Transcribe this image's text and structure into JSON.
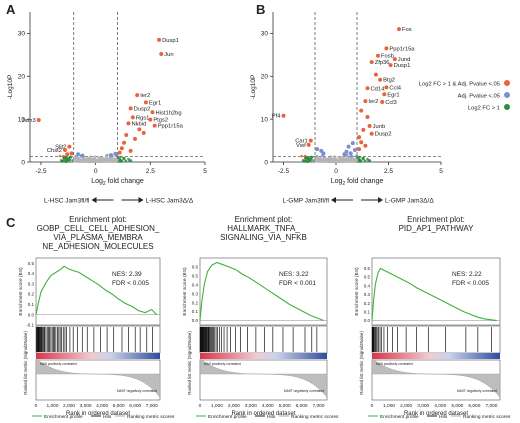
{
  "panels": {
    "a": "A",
    "b": "B",
    "c": "C"
  },
  "chart_data": [
    {
      "type": "scatter",
      "panel": "A",
      "xlabel_main": "Log",
      "xlabel_sub": "2",
      "xlabel_tail": " fold change",
      "ylabel": "-Log10P",
      "xlim": [
        -3,
        5
      ],
      "ylim": [
        0,
        35
      ],
      "xticks": [
        "-2.5",
        "0",
        "2.5",
        "5"
      ],
      "yticks": [
        "0",
        "10",
        "20",
        "30"
      ],
      "vlines": [
        -1,
        1
      ],
      "hline": 1.3,
      "direction_left": "L-HSC Jam3fl/fl",
      "direction_right": "L-HSC Jam3Δ/Δ",
      "points": [
        {
          "x": 2.9,
          "y": 28.5,
          "label": "Dusp1"
        },
        {
          "x": 3.0,
          "y": 25.2,
          "label": "Jun"
        },
        {
          "x": 1.9,
          "y": 15.6,
          "label": "Ier2"
        },
        {
          "x": 2.3,
          "y": 13.9,
          "label": "Egr1"
        },
        {
          "x": 1.6,
          "y": 12.5,
          "label": "Dusp2"
        },
        {
          "x": 2.6,
          "y": 11.6,
          "label": "Hist1h2bg"
        },
        {
          "x": 1.7,
          "y": 10.4,
          "label": "Rgs1"
        },
        {
          "x": 2.5,
          "y": 9.9,
          "label": "Ptgs2"
        },
        {
          "x": 1.5,
          "y": 9.0,
          "label": "Nkbid"
        },
        {
          "x": 2.7,
          "y": 8.5,
          "label": "Ppp1r15a"
        },
        {
          "x": -2.6,
          "y": 9.8,
          "label": "Jam3"
        },
        {
          "x": -1.2,
          "y": 3.6,
          "label": "Slit2"
        },
        {
          "x": -1.4,
          "y": 2.8,
          "label": "Chst2"
        },
        {
          "x": 2.0,
          "y": 7.6,
          "label": ""
        },
        {
          "x": 1.4,
          "y": 6.3,
          "label": ""
        },
        {
          "x": 1.8,
          "y": 5.4,
          "label": ""
        },
        {
          "x": 2.2,
          "y": 6.8,
          "label": ""
        },
        {
          "x": 1.3,
          "y": 4.5,
          "label": ""
        },
        {
          "x": 1.2,
          "y": 3.2,
          "label": ""
        },
        {
          "x": 1.6,
          "y": 2.6,
          "label": ""
        },
        {
          "x": 1.1,
          "y": 2.2,
          "label": ""
        },
        {
          "x": -1.1,
          "y": 2.0,
          "label": ""
        },
        {
          "x": -1.3,
          "y": 1.8,
          "label": ""
        },
        {
          "x": 0.9,
          "y": 1.9,
          "label": ""
        },
        {
          "x": 0.7,
          "y": 1.6,
          "label": ""
        },
        {
          "x": -0.6,
          "y": 1.5,
          "label": ""
        },
        {
          "x": -0.8,
          "y": 1.8,
          "label": ""
        }
      ]
    },
    {
      "type": "scatter",
      "panel": "B",
      "xlabel_main": "Log",
      "xlabel_sub": "2",
      "xlabel_tail": " fold change",
      "ylabel": "-Log10P",
      "xlim": [
        -3,
        5
      ],
      "ylim": [
        0,
        35
      ],
      "xticks": [
        "-2.5",
        "0",
        "2.5",
        "5"
      ],
      "yticks": [
        "0",
        "10",
        "20",
        "30"
      ],
      "vlines": [
        -1,
        1
      ],
      "hline": 1.3,
      "direction_left": "L-GMP Jam3fl/fl",
      "direction_right": "L-GMP Jam3Δ/Δ",
      "points": [
        {
          "x": 3.0,
          "y": 31.0,
          "label": "Fos"
        },
        {
          "x": 2.4,
          "y": 26.5,
          "label": "Ppp1r15a"
        },
        {
          "x": 2.0,
          "y": 24.8,
          "label": "Fosb"
        },
        {
          "x": 2.8,
          "y": 24.0,
          "label": "Jund"
        },
        {
          "x": 1.7,
          "y": 23.3,
          "label": "Zfp36"
        },
        {
          "x": 2.6,
          "y": 22.6,
          "label": "Dusp1"
        },
        {
          "x": 2.1,
          "y": 19.2,
          "label": "Btg2"
        },
        {
          "x": 1.5,
          "y": 17.2,
          "label": "Cd14"
        },
        {
          "x": 2.4,
          "y": 17.4,
          "label": "Ccl4"
        },
        {
          "x": 2.3,
          "y": 15.8,
          "label": "Egr1"
        },
        {
          "x": 1.4,
          "y": 14.2,
          "label": "Ier2"
        },
        {
          "x": 2.2,
          "y": 14.0,
          "label": "Ccl3"
        },
        {
          "x": 1.6,
          "y": 8.4,
          "label": "Junb"
        },
        {
          "x": 1.7,
          "y": 6.6,
          "label": "Dusp2"
        },
        {
          "x": -2.5,
          "y": 10.8,
          "label": "Pf4"
        },
        {
          "x": -1.2,
          "y": 5.0,
          "label": "Car1"
        },
        {
          "x": -1.3,
          "y": 4.0,
          "label": "Vwf"
        },
        {
          "x": 1.9,
          "y": 20.4,
          "label": ""
        },
        {
          "x": 1.2,
          "y": 12.0,
          "label": ""
        },
        {
          "x": 1.5,
          "y": 10.5,
          "label": ""
        },
        {
          "x": 1.3,
          "y": 7.5,
          "label": ""
        },
        {
          "x": 1.1,
          "y": 5.8,
          "label": ""
        },
        {
          "x": 1.2,
          "y": 4.6,
          "label": ""
        },
        {
          "x": 1.4,
          "y": 3.8,
          "label": ""
        },
        {
          "x": 1.1,
          "y": 3.0,
          "label": ""
        },
        {
          "x": 0.8,
          "y": 4.4,
          "label": ""
        },
        {
          "x": 0.6,
          "y": 3.6,
          "label": ""
        },
        {
          "x": 0.9,
          "y": 2.8,
          "label": ""
        },
        {
          "x": 0.5,
          "y": 2.4,
          "label": ""
        },
        {
          "x": -0.7,
          "y": 2.6,
          "label": ""
        },
        {
          "x": -0.9,
          "y": 3.0,
          "label": ""
        },
        {
          "x": -0.6,
          "y": 2.0,
          "label": ""
        },
        {
          "x": 0.4,
          "y": 1.8,
          "label": ""
        },
        {
          "x": 0.7,
          "y": 2.0,
          "label": ""
        }
      ]
    },
    {
      "type": "line",
      "panel": "C1",
      "title_lines": [
        "Enrichment plot:",
        "GOBP_CELL_CELL_ADHESION_",
        "VIA_PLASMA_MEMBRA",
        "NE_ADHESION_MOLECULES"
      ],
      "nes": "NES: 2.39",
      "fdr": "FDR < 0.005",
      "ylabel_top": "Enrichment score (ES)",
      "ylabel_bottom": "Ranked list metric (Signal2Noise)",
      "xlabel": "Rank in ordered dataset",
      "es_yticks": [
        "0.5",
        "0.4",
        "0.3",
        "0.2",
        "0.1",
        "0.0",
        "-0.1"
      ],
      "es_ylim": [
        -0.1,
        0.55
      ],
      "xticks": [
        "0",
        "1,000",
        "2,000",
        "3,000",
        "4,000",
        "5,000",
        "6,000",
        "7,000"
      ],
      "xlim": [
        0,
        7500
      ],
      "es_curve": [
        [
          0,
          0
        ],
        [
          150,
          0.12
        ],
        [
          300,
          0.22
        ],
        [
          600,
          0.31
        ],
        [
          900,
          0.38
        ],
        [
          1200,
          0.41
        ],
        [
          1500,
          0.44
        ],
        [
          1700,
          0.47
        ],
        [
          1900,
          0.45
        ],
        [
          2200,
          0.43
        ],
        [
          2600,
          0.41
        ],
        [
          3000,
          0.37
        ],
        [
          3400,
          0.33
        ],
        [
          3800,
          0.29
        ],
        [
          4200,
          0.24
        ],
        [
          4600,
          0.2
        ],
        [
          5000,
          0.15
        ],
        [
          5400,
          0.11
        ],
        [
          5800,
          0.08
        ],
        [
          6200,
          0.04
        ],
        [
          6600,
          0.02
        ],
        [
          7000,
          0.05
        ],
        [
          7300,
          0.0
        ]
      ],
      "hits": [
        30,
        60,
        90,
        110,
        140,
        170,
        200,
        240,
        280,
        320,
        360,
        420,
        480,
        520,
        600,
        680,
        760,
        820,
        900,
        980,
        1050,
        1120,
        1200,
        1300,
        1380,
        1460,
        1550,
        1650,
        1750,
        1850,
        2050,
        2250,
        2500,
        2800,
        3100,
        3500,
        3900,
        4300,
        4700,
        5200,
        5600,
        6000,
        6300,
        6700,
        7050
      ],
      "metric_label_pos": "MA9 positively correlated",
      "metric_label_neg": "MA9T negatively correlated"
    },
    {
      "type": "line",
      "panel": "C2",
      "title_lines": [
        "Enrichment plot:",
        "HALLMARK_TNFA_",
        "SIGNALING_VIA_NFKB"
      ],
      "nes": "NES: 3.22",
      "fdr": "FDR < 0.001",
      "ylabel_top": "Enrichment score (ES)",
      "ylabel_bottom": "Ranked list metric (Signal2Noise)",
      "xlabel": "Rank in ordered dataset",
      "es_yticks": [
        "0.6",
        "0.5",
        "0.4",
        "0.3",
        "0.2",
        "0.1",
        "0.0"
      ],
      "es_ylim": [
        -0.05,
        0.7
      ],
      "xticks": [
        "0",
        "1,000",
        "2,000",
        "3,000",
        "4,000",
        "5,000",
        "6,000",
        "7,000"
      ],
      "xlim": [
        0,
        7500
      ],
      "es_curve": [
        [
          0,
          0
        ],
        [
          100,
          0.2
        ],
        [
          250,
          0.4
        ],
        [
          450,
          0.55
        ],
        [
          700,
          0.62
        ],
        [
          1000,
          0.65
        ],
        [
          1300,
          0.63
        ],
        [
          1700,
          0.6
        ],
        [
          2100,
          0.57
        ],
        [
          2500,
          0.52
        ],
        [
          2900,
          0.48
        ],
        [
          3300,
          0.43
        ],
        [
          3700,
          0.38
        ],
        [
          4100,
          0.33
        ],
        [
          4500,
          0.28
        ],
        [
          4900,
          0.23
        ],
        [
          5300,
          0.18
        ],
        [
          5700,
          0.14
        ],
        [
          6100,
          0.1
        ],
        [
          6500,
          0.06
        ],
        [
          6900,
          0.03
        ],
        [
          7300,
          0.0
        ]
      ],
      "hits": [
        10,
        30,
        50,
        70,
        90,
        110,
        130,
        150,
        170,
        190,
        210,
        240,
        270,
        300,
        330,
        360,
        400,
        440,
        480,
        520,
        570,
        620,
        680,
        740,
        800,
        870,
        950,
        1030,
        1150,
        1280,
        1420,
        1600,
        1800,
        2100,
        2400,
        2800,
        3300,
        3800,
        4300,
        4900,
        5500,
        6200,
        6600,
        6900
      ],
      "metric_label_pos": "MA9 positively correlated",
      "metric_label_neg": "MA9T negatively correlated"
    },
    {
      "type": "line",
      "panel": "C3",
      "title_lines": [
        "Enrichment plot:",
        "PID_AP1_PATHWAY"
      ],
      "nes": "NES: 2.22",
      "fdr": "FDR < 0.005",
      "ylabel_top": "Enrichment score (ES)",
      "ylabel_bottom": "Ranked list metric (Signal2Noise)",
      "xlabel": "Rank in ordered dataset",
      "es_yticks": [
        "0.6",
        "0.5",
        "0.4",
        "0.3",
        "0.2",
        "0.1",
        "0.0"
      ],
      "es_ylim": [
        -0.05,
        0.72
      ],
      "xticks": [
        "0",
        "1,000",
        "2,000",
        "3,000",
        "4,000",
        "5,000",
        "6,000",
        "7,000"
      ],
      "xlim": [
        0,
        7500
      ],
      "es_curve": [
        [
          0,
          0
        ],
        [
          100,
          0.25
        ],
        [
          200,
          0.42
        ],
        [
          350,
          0.55
        ],
        [
          500,
          0.6
        ],
        [
          700,
          0.58
        ],
        [
          1000,
          0.55
        ],
        [
          1400,
          0.51
        ],
        [
          1800,
          0.47
        ],
        [
          2200,
          0.43
        ],
        [
          2600,
          0.38
        ],
        [
          3000,
          0.34
        ],
        [
          3400,
          0.3
        ],
        [
          3800,
          0.26
        ],
        [
          4200,
          0.22
        ],
        [
          4600,
          0.18
        ],
        [
          5000,
          0.14
        ],
        [
          5400,
          0.1
        ],
        [
          5800,
          0.07
        ],
        [
          6200,
          0.04
        ],
        [
          6600,
          0.02
        ],
        [
          7000,
          0.01
        ],
        [
          7300,
          0.0
        ]
      ],
      "hits": [
        15,
        40,
        70,
        100,
        140,
        190,
        240,
        300,
        380,
        470,
        560,
        700,
        900,
        1200,
        1500,
        2000,
        2600,
        3300,
        4300,
        5500,
        6200,
        7000
      ],
      "metric_label_pos": "MA9 positively correlated",
      "metric_label_neg": "MA9T negatively correlated"
    }
  ],
  "legend_volcano": [
    {
      "label": "Log2 FC > 1 & Adj. Pvalue <.05",
      "color": "#e8643c"
    },
    {
      "label": "Adj. Pvalue <.05",
      "color": "#7b8fd0"
    },
    {
      "label": "Log2 FC > 1",
      "color": "#2e8b3e"
    }
  ],
  "legend_gsea": [
    {
      "label": "Enrichment profile",
      "kind": "line",
      "color": "#3cb43c"
    },
    {
      "label": "Hits",
      "kind": "line",
      "color": "#222222"
    },
    {
      "label": "Ranking metric scores",
      "kind": "line",
      "color": "#aaaaaa"
    }
  ],
  "colors": {
    "sig": "#e8643c",
    "padj": "#7b8fd0",
    "fc": "#2e8b3e",
    "ns": "#b5b5b5",
    "es": "#3cb43c",
    "heat_pos": "#d9344a",
    "heat_neg": "#2f4c9e"
  }
}
